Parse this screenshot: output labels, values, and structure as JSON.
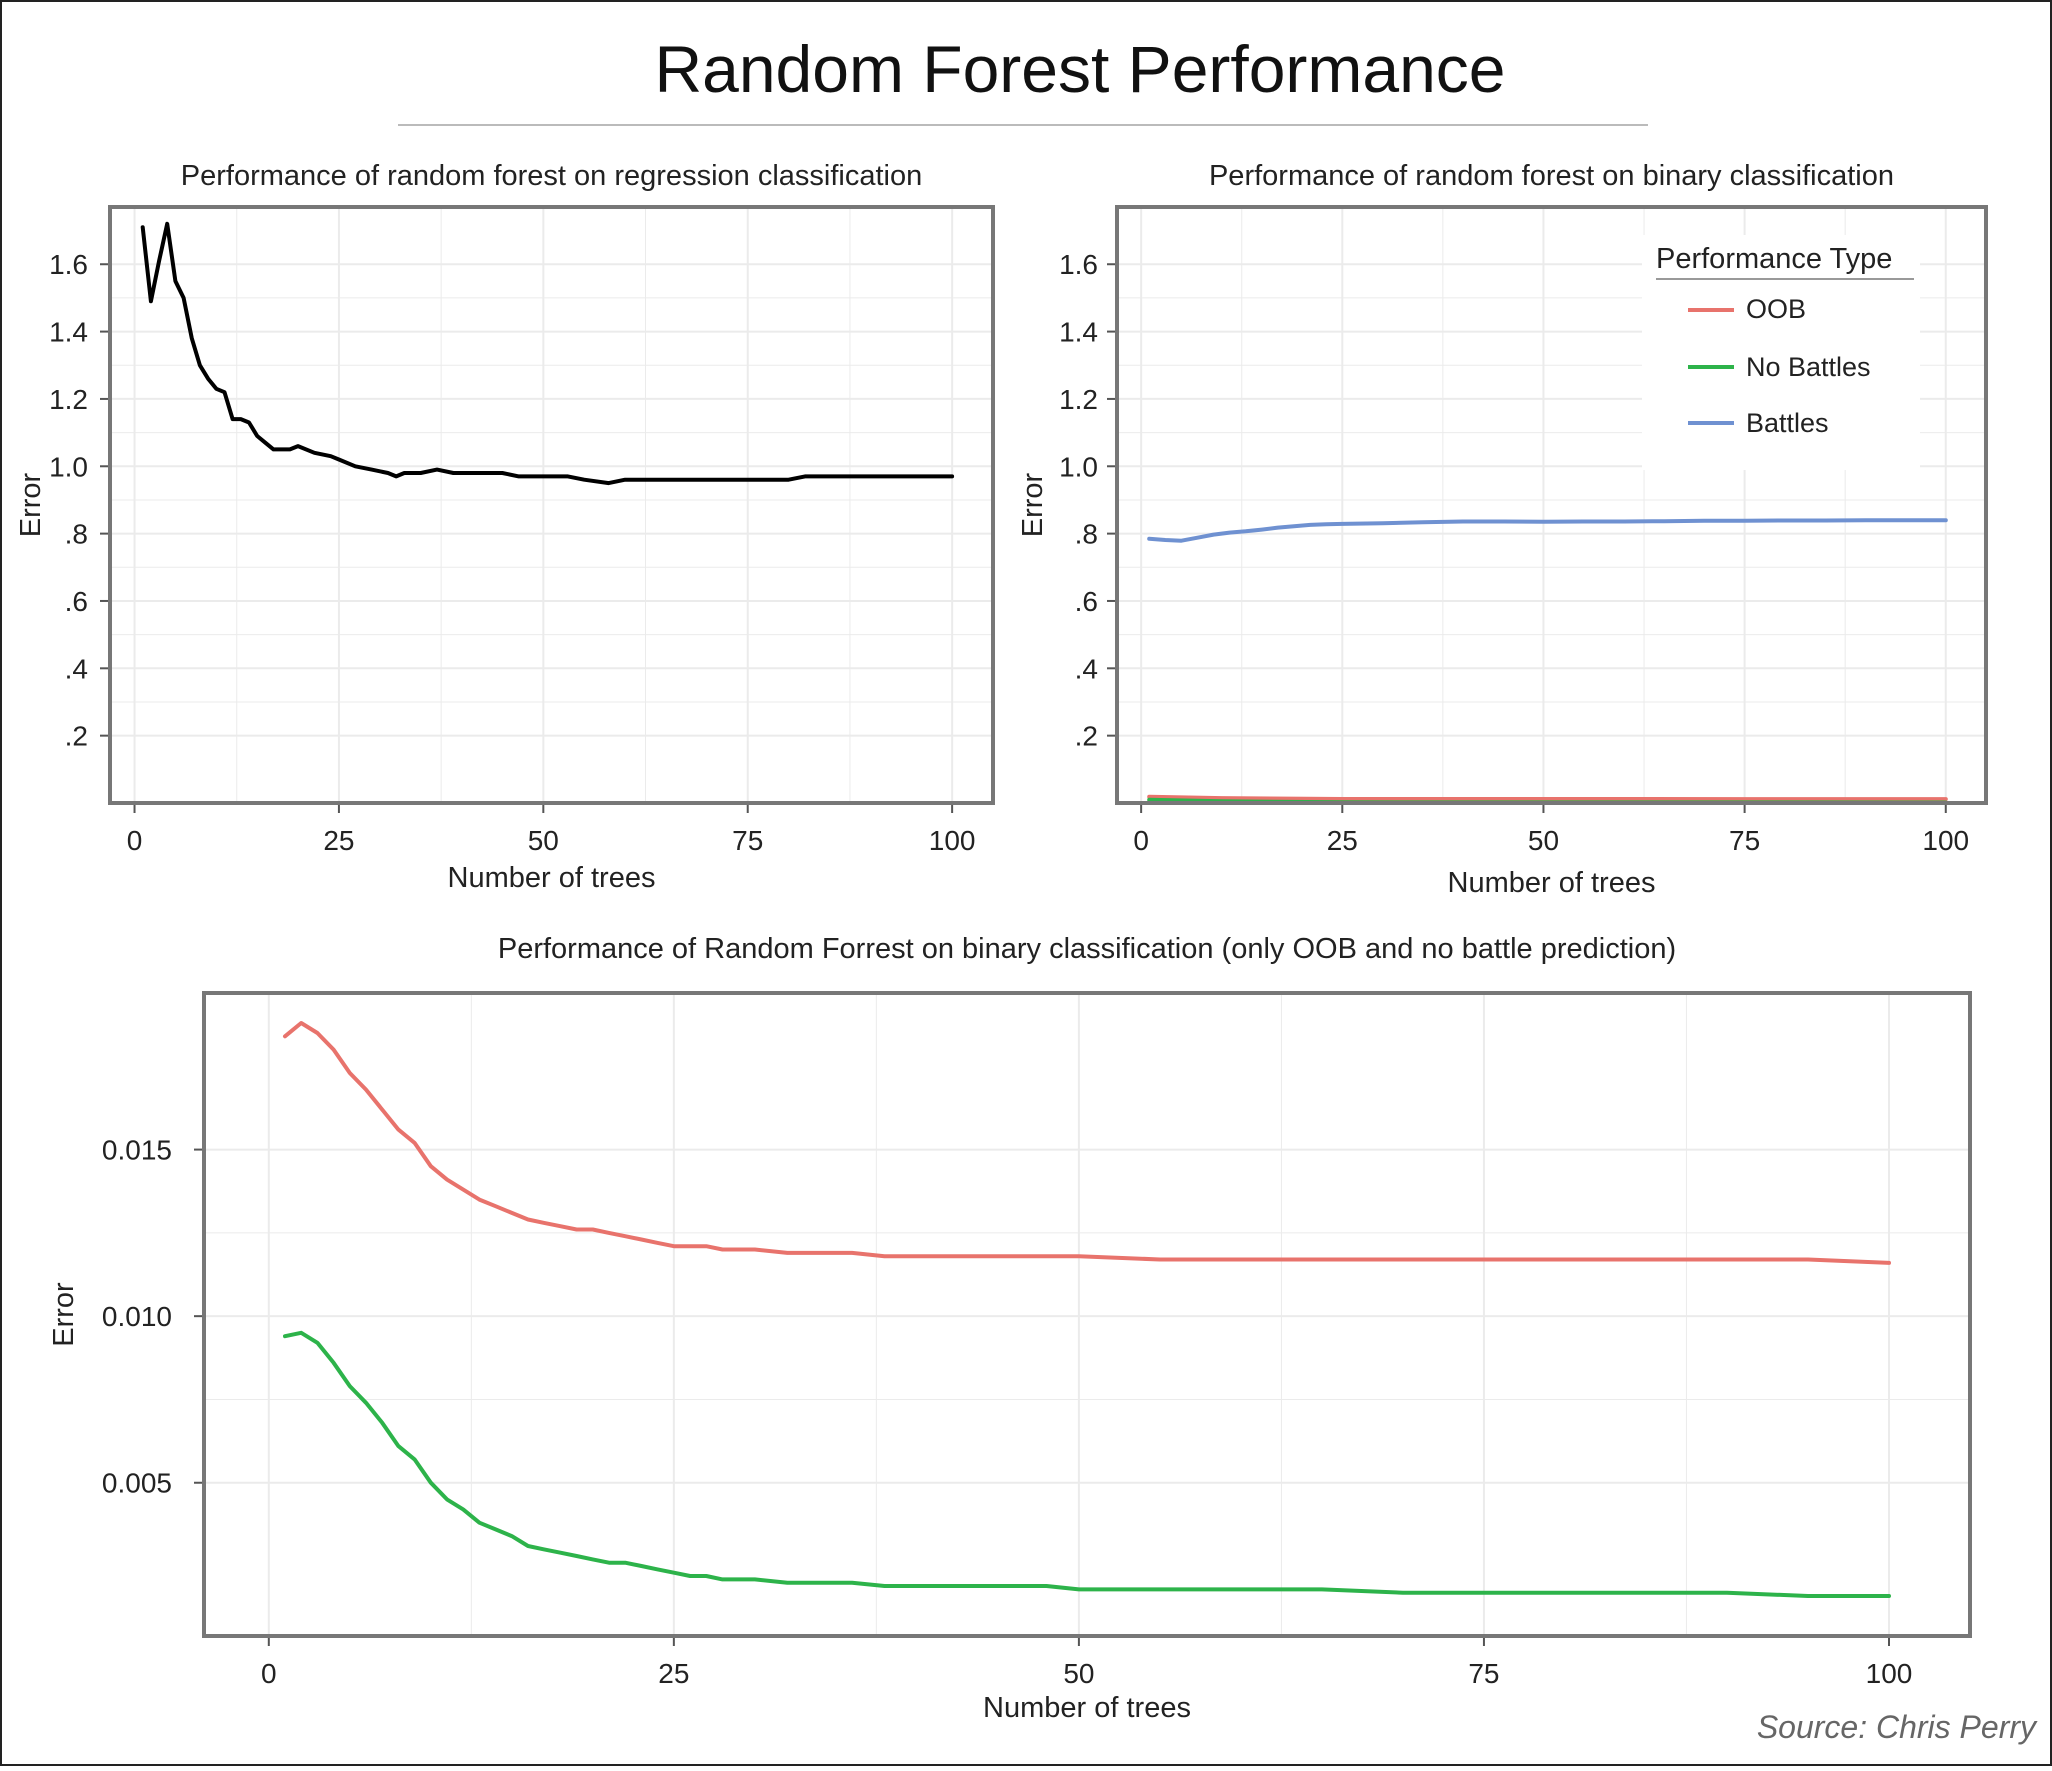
{
  "title": "Random Forest Performance",
  "source": "Source: Chris Perry",
  "colors": {
    "oob": "#E8736C",
    "no_battles": "#2DB34A",
    "battles": "#6F91D1",
    "regression": "#000000",
    "frame": "#777777",
    "grid": "#EBEBEB"
  },
  "legend": {
    "title": "Performance Type",
    "items": [
      {
        "label": "OOB",
        "color": "#E8736C"
      },
      {
        "label": "No Battles",
        "color": "#2DB34A"
      },
      {
        "label": "Battles",
        "color": "#6F91D1"
      }
    ]
  },
  "chart_data": [
    {
      "type": "line",
      "title": "Performance of random forest on regression classification",
      "xlabel": "Number of trees",
      "ylabel": "Error",
      "xlim": [
        -3,
        105
      ],
      "ylim": [
        0,
        1.77
      ],
      "x_ticks": [
        0,
        25,
        50,
        75,
        100
      ],
      "x_tick_labels": [
        "0",
        "25",
        "50",
        "75",
        "100"
      ],
      "y_ticks": [
        0.2,
        0.4,
        0.6,
        0.8,
        1.0,
        1.2,
        1.4,
        1.6
      ],
      "y_tick_labels": [
        ".2",
        ".4",
        ".6",
        ".8",
        "1.0",
        "1.2",
        "1.4",
        "1.6"
      ],
      "grid": true,
      "series": [
        {
          "color": "#000000",
          "x": [
            1,
            2,
            3,
            4,
            5,
            6,
            7,
            8,
            9,
            10,
            11,
            12,
            13,
            14,
            15,
            16,
            17,
            18,
            19,
            20,
            22,
            24,
            25,
            27,
            29,
            31,
            32,
            33,
            35,
            37,
            39,
            41,
            43,
            45,
            47,
            49,
            51,
            53,
            55,
            58,
            60,
            62,
            64,
            66,
            68,
            70,
            72,
            74,
            76,
            78,
            80,
            82,
            84,
            86,
            88,
            90,
            92,
            94,
            96,
            98,
            100
          ],
          "y": [
            1.71,
            1.49,
            1.61,
            1.72,
            1.55,
            1.5,
            1.38,
            1.3,
            1.26,
            1.23,
            1.22,
            1.14,
            1.14,
            1.13,
            1.09,
            1.07,
            1.05,
            1.05,
            1.05,
            1.06,
            1.04,
            1.03,
            1.02,
            1.0,
            0.99,
            0.98,
            0.97,
            0.98,
            0.98,
            0.99,
            0.98,
            0.98,
            0.98,
            0.98,
            0.97,
            0.97,
            0.97,
            0.97,
            0.96,
            0.95,
            0.96,
            0.96,
            0.96,
            0.96,
            0.96,
            0.96,
            0.96,
            0.96,
            0.96,
            0.96,
            0.96,
            0.97,
            0.97,
            0.97,
            0.97,
            0.97,
            0.97,
            0.97,
            0.97,
            0.97,
            0.97
          ]
        }
      ]
    },
    {
      "type": "line",
      "title": "Performance of random forest on binary classification",
      "xlabel": "Number of trees",
      "ylabel": "Error",
      "xlim": [
        -3,
        105
      ],
      "ylim": [
        0,
        1.77
      ],
      "x_ticks": [
        0,
        25,
        50,
        75,
        100
      ],
      "x_tick_labels": [
        "0",
        "25",
        "50",
        "75",
        "100"
      ],
      "y_ticks": [
        0.2,
        0.4,
        0.6,
        0.8,
        1.0,
        1.2,
        1.4,
        1.6
      ],
      "y_tick_labels": [
        ".2",
        ".4",
        ".6",
        ".8",
        "1.0",
        "1.2",
        "1.4",
        "1.6"
      ],
      "grid": true,
      "legend_position": "top-right",
      "series": [
        {
          "name": "OOB",
          "color": "#E8736C",
          "x": [
            1,
            10,
            25,
            50,
            75,
            100
          ],
          "y": [
            0.0185,
            0.0145,
            0.012,
            0.0118,
            0.0117,
            0.0116
          ]
        },
        {
          "name": "No Battles",
          "color": "#2DB34A",
          "x": [
            1,
            10,
            25,
            50,
            75,
            100
          ],
          "y": [
            0.0094,
            0.005,
            0.0022,
            0.0019,
            0.0017,
            0.0016
          ]
        },
        {
          "name": "Battles",
          "color": "#6F91D1",
          "x": [
            1,
            3,
            5,
            7,
            9,
            11,
            13,
            15,
            17,
            19,
            21,
            23,
            25,
            30,
            35,
            40,
            45,
            50,
            55,
            60,
            65,
            70,
            75,
            80,
            85,
            90,
            95,
            100
          ],
          "y": [
            0.785,
            0.781,
            0.779,
            0.788,
            0.797,
            0.803,
            0.807,
            0.812,
            0.818,
            0.822,
            0.826,
            0.828,
            0.829,
            0.831,
            0.834,
            0.836,
            0.836,
            0.835,
            0.836,
            0.836,
            0.837,
            0.838,
            0.838,
            0.839,
            0.839,
            0.84,
            0.84,
            0.84
          ]
        }
      ]
    },
    {
      "type": "line",
      "title": "Performance of Random Forrest on binary classification (only OOB and no battle prediction)",
      "xlabel": "Number of trees",
      "ylabel": "Error",
      "xlim": [
        -4,
        105
      ],
      "ylim": [
        0.0004,
        0.0197
      ],
      "x_ticks": [
        0,
        25,
        50,
        75,
        100
      ],
      "x_tick_labels": [
        "0",
        "25",
        "50",
        "75",
        "100"
      ],
      "y_ticks": [
        0.005,
        0.01,
        0.015
      ],
      "y_tick_labels": [
        "0.005",
        "0.010",
        "0.015"
      ],
      "grid": true,
      "series": [
        {
          "name": "OOB",
          "color": "#E8736C",
          "x": [
            1,
            2,
            3,
            4,
            5,
            6,
            7,
            8,
            9,
            10,
            11,
            12,
            13,
            14,
            15,
            16,
            17,
            18,
            19,
            20,
            21,
            22,
            23,
            24,
            25,
            26,
            27,
            28,
            29,
            30,
            32,
            34,
            36,
            38,
            40,
            42,
            44,
            46,
            48,
            50,
            55,
            60,
            65,
            70,
            75,
            80,
            85,
            90,
            95,
            100
          ],
          "y": [
            0.0184,
            0.0188,
            0.0185,
            0.018,
            0.0173,
            0.0168,
            0.0162,
            0.0156,
            0.0152,
            0.0145,
            0.0141,
            0.0138,
            0.0135,
            0.0133,
            0.0131,
            0.0129,
            0.0128,
            0.0127,
            0.0126,
            0.0126,
            0.0125,
            0.0124,
            0.0123,
            0.0122,
            0.0121,
            0.0121,
            0.0121,
            0.012,
            0.012,
            0.012,
            0.0119,
            0.0119,
            0.0119,
            0.0118,
            0.0118,
            0.0118,
            0.0118,
            0.0118,
            0.0118,
            0.0118,
            0.0117,
            0.0117,
            0.0117,
            0.0117,
            0.0117,
            0.0117,
            0.0117,
            0.0117,
            0.0117,
            0.0116
          ]
        },
        {
          "name": "No Battles",
          "color": "#2DB34A",
          "x": [
            1,
            2,
            3,
            4,
            5,
            6,
            7,
            8,
            9,
            10,
            11,
            12,
            13,
            14,
            15,
            16,
            17,
            18,
            19,
            20,
            21,
            22,
            23,
            24,
            25,
            26,
            27,
            28,
            29,
            30,
            32,
            34,
            36,
            38,
            40,
            42,
            44,
            46,
            48,
            50,
            55,
            60,
            65,
            70,
            75,
            80,
            85,
            90,
            95,
            100
          ],
          "y": [
            0.0094,
            0.0095,
            0.0092,
            0.0086,
            0.0079,
            0.0074,
            0.0068,
            0.0061,
            0.0057,
            0.005,
            0.0045,
            0.0042,
            0.0038,
            0.0036,
            0.0034,
            0.0031,
            0.003,
            0.0029,
            0.0028,
            0.0027,
            0.0026,
            0.0026,
            0.0025,
            0.0024,
            0.0023,
            0.0022,
            0.0022,
            0.0021,
            0.0021,
            0.0021,
            0.002,
            0.002,
            0.002,
            0.0019,
            0.0019,
            0.0019,
            0.0019,
            0.0019,
            0.0019,
            0.0018,
            0.0018,
            0.0018,
            0.0018,
            0.0017,
            0.0017,
            0.0017,
            0.0017,
            0.0017,
            0.0016,
            0.0016
          ]
        }
      ]
    }
  ]
}
